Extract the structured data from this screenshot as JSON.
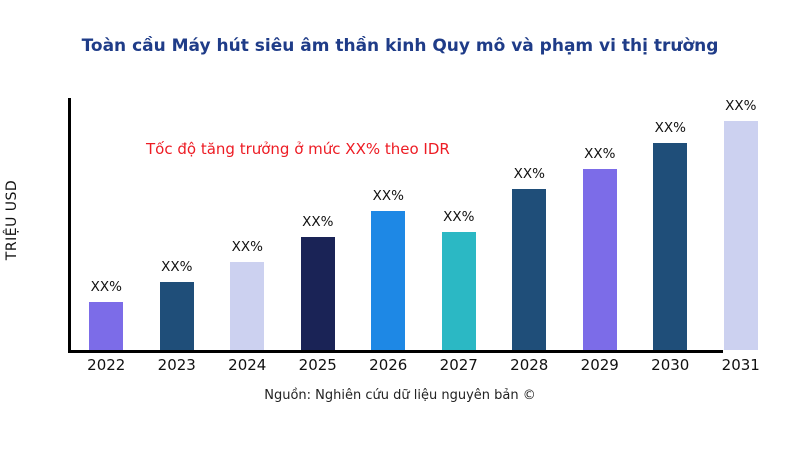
{
  "chart_data": {
    "type": "bar",
    "title": "Toàn cầu Máy hút siêu âm thần kinh Quy mô và phạm vi thị trường",
    "ylabel": "TRIỆU USD",
    "annotation": "Tốc độ tăng trưởng ở mức XX% theo IDR",
    "source": "Nguồn: Nghiên cứu dữ liệu nguyên bản ©",
    "categories": [
      "2022",
      "2023",
      "2024",
      "2025",
      "2026",
      "2027",
      "2028",
      "2029",
      "2030",
      "2031"
    ],
    "values_relative": [
      19,
      27,
      35,
      45,
      55,
      47,
      64,
      72,
      82,
      91
    ],
    "bar_labels": [
      "XX%",
      "XX%",
      "XX%",
      "XX%",
      "XX%",
      "XX%",
      "XX%",
      "XX%",
      "XX%",
      "XX%"
    ],
    "bar_colors": [
      "#7c6ce8",
      "#1f4e79",
      "#ccd1f0",
      "#1a2356",
      "#1e88e5",
      "#2bb8c4",
      "#1f4e79",
      "#7c6ce8",
      "#1f4e79",
      "#ccd1f0"
    ],
    "title_color": "#1f3c88",
    "annotation_color": "#ed1c24",
    "axis_color": "#000000",
    "text_color": "#111111",
    "background_color": "#ffffff",
    "grid": false,
    "legend": false,
    "ylim_note": "no numeric y-axis ticks shown; values are placeholders (XX%)"
  }
}
